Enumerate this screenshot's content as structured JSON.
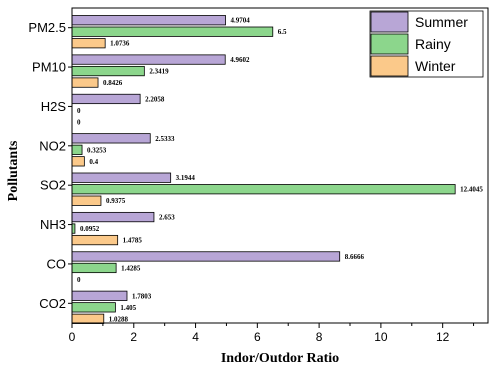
{
  "colors": {
    "Summer": "#b8a6d6",
    "Rainy": "#8cd68c",
    "Winter": "#fbc98a",
    "stroke": "#000000"
  },
  "chart_data": {
    "type": "bar",
    "orientation": "horizontal",
    "xlabel": "Indor/Outdor Ratio",
    "ylabel": "Pollutants",
    "xlim": [
      0,
      13.5
    ],
    "xticks": [
      0,
      2,
      4,
      6,
      8,
      10,
      12
    ],
    "grid": false,
    "legend_position": "top-right",
    "categories": [
      "PM2.5",
      "PM10",
      "H2S",
      "NO2",
      "SO2",
      "NH3",
      "CO",
      "CO2"
    ],
    "series": [
      {
        "name": "Summer",
        "values": [
          4.9704,
          4.9602,
          2.2058,
          2.5333,
          3.1944,
          2.653,
          8.6666,
          1.7803
        ],
        "labels": [
          "4.9704",
          "4.9602",
          "2.2058",
          "2.5333",
          "3.1944",
          "2.653",
          "8.6666",
          "1.7803"
        ]
      },
      {
        "name": "Rainy",
        "values": [
          6.5,
          2.3419,
          0,
          0.3253,
          12.4045,
          0.0952,
          1.4285,
          1.405
        ],
        "labels": [
          "6.5",
          "2.3419",
          "0",
          "0.3253",
          "12.4045",
          "0.0952",
          "1.4285",
          "1.405"
        ]
      },
      {
        "name": "Winter",
        "values": [
          1.0736,
          0.8426,
          0,
          0.4,
          0.9375,
          1.4785,
          0,
          1.0288
        ],
        "labels": [
          "1.0736",
          "0.8426",
          "0",
          "0.4",
          "0.9375",
          "1.4785",
          "0",
          "1.0288"
        ]
      }
    ]
  }
}
